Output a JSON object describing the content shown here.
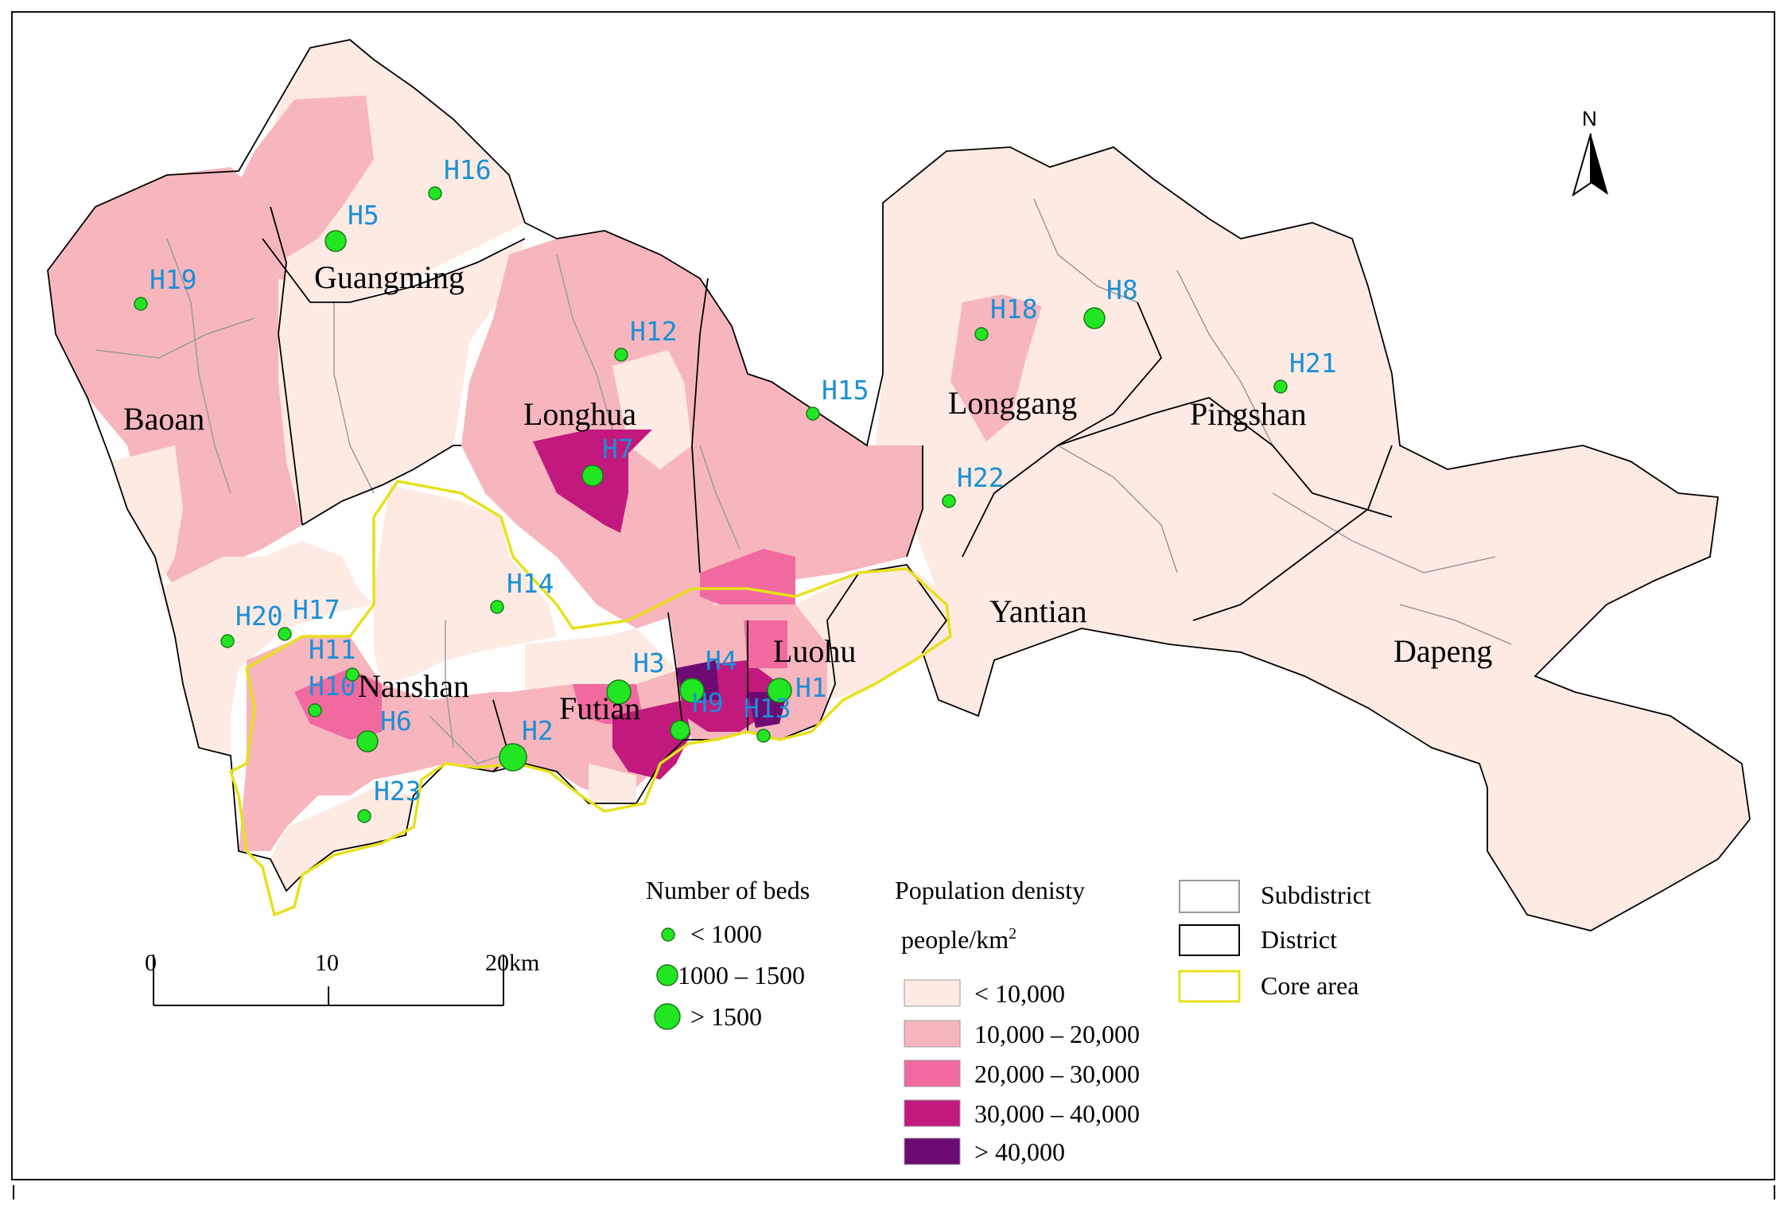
{
  "colors": {
    "d1": "#fdeae3",
    "d2": "#f7b6bd",
    "d3": "#f06aa0",
    "d4": "#c2197f",
    "d5": "#6e0a74",
    "core_outline": "#e8e01c",
    "hospital_fill": "#22e622",
    "hospital_label": "#1a8fd6",
    "subdistrict_line": "#9a9a9a",
    "district_line": "#000000"
  },
  "north_arrow": {
    "label": "N"
  },
  "districts": [
    {
      "id": "baoan",
      "name": "Baoan"
    },
    {
      "id": "guangming",
      "name": "Guangming"
    },
    {
      "id": "longhua",
      "name": "Longhua"
    },
    {
      "id": "longgang",
      "name": "Longgang"
    },
    {
      "id": "pingshan",
      "name": "Pingshan"
    },
    {
      "id": "yantian",
      "name": "Yantian"
    },
    {
      "id": "dapeng",
      "name": "Dapeng"
    },
    {
      "id": "nanshan",
      "name": "Nanshan"
    },
    {
      "id": "futian",
      "name": "Futian"
    },
    {
      "id": "luohu",
      "name": "Luohu"
    }
  ],
  "hospitals": [
    {
      "id": "H1",
      "beds_class": "1000 – 1500"
    },
    {
      "id": "H2",
      "beds_class": "> 1500"
    },
    {
      "id": "H3",
      "beds_class": "1000 – 1500"
    },
    {
      "id": "H4",
      "beds_class": "1000 – 1500"
    },
    {
      "id": "H5",
      "beds_class": "1000 – 1500"
    },
    {
      "id": "H6",
      "beds_class": "1000 – 1500"
    },
    {
      "id": "H7",
      "beds_class": "1000 – 1500"
    },
    {
      "id": "H8",
      "beds_class": "1000 – 1500"
    },
    {
      "id": "H9",
      "beds_class": "1000 – 1500"
    },
    {
      "id": "H10",
      "beds_class": "< 1000"
    },
    {
      "id": "H11",
      "beds_class": "< 1000"
    },
    {
      "id": "H12",
      "beds_class": "< 1000"
    },
    {
      "id": "H13",
      "beds_class": "< 1000"
    },
    {
      "id": "H14",
      "beds_class": "< 1000"
    },
    {
      "id": "H15",
      "beds_class": "< 1000"
    },
    {
      "id": "H16",
      "beds_class": "< 1000"
    },
    {
      "id": "H17",
      "beds_class": "< 1000"
    },
    {
      "id": "H18",
      "beds_class": "< 1000"
    },
    {
      "id": "H19",
      "beds_class": "< 1000"
    },
    {
      "id": "H20",
      "beds_class": "< 1000"
    },
    {
      "id": "H21",
      "beds_class": "< 1000"
    },
    {
      "id": "H22",
      "beds_class": "< 1000"
    },
    {
      "id": "H23",
      "beds_class": "< 1000"
    }
  ],
  "legend": {
    "beds": {
      "title": "Number of beds",
      "items": [
        "< 1000",
        "1000 – 1500",
        "> 1500"
      ]
    },
    "density": {
      "title": "Population denisty",
      "unit": "people/km",
      "unit_sup": "2",
      "items": [
        "< 10,000",
        "10,000 – 20,000",
        "20,000 – 30,000",
        "30,000 – 40,000",
        "> 40,000"
      ]
    },
    "boundaries": {
      "items": [
        "Subdistrict",
        "District",
        "Core area"
      ]
    }
  },
  "scale_bar": {
    "ticks": [
      "0",
      "10",
      "20km"
    ]
  }
}
